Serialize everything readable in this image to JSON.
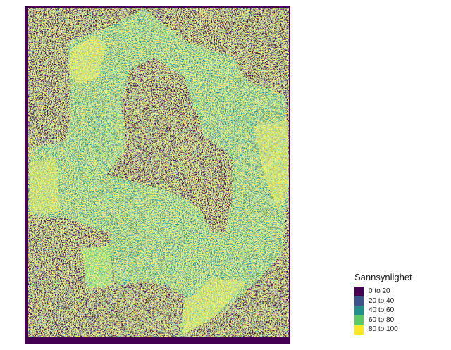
{
  "legend": {
    "title": "Sannsynlighet",
    "classes": [
      {
        "label": "0 to 20",
        "color": "#440154"
      },
      {
        "label": "20 to 40",
        "color": "#3b528b"
      },
      {
        "label": "40 to 60",
        "color": "#21908d"
      },
      {
        "label": "60 to 80",
        "color": "#5dc963"
      },
      {
        "label": "80 to 100",
        "color": "#fde725"
      }
    ]
  }
}
